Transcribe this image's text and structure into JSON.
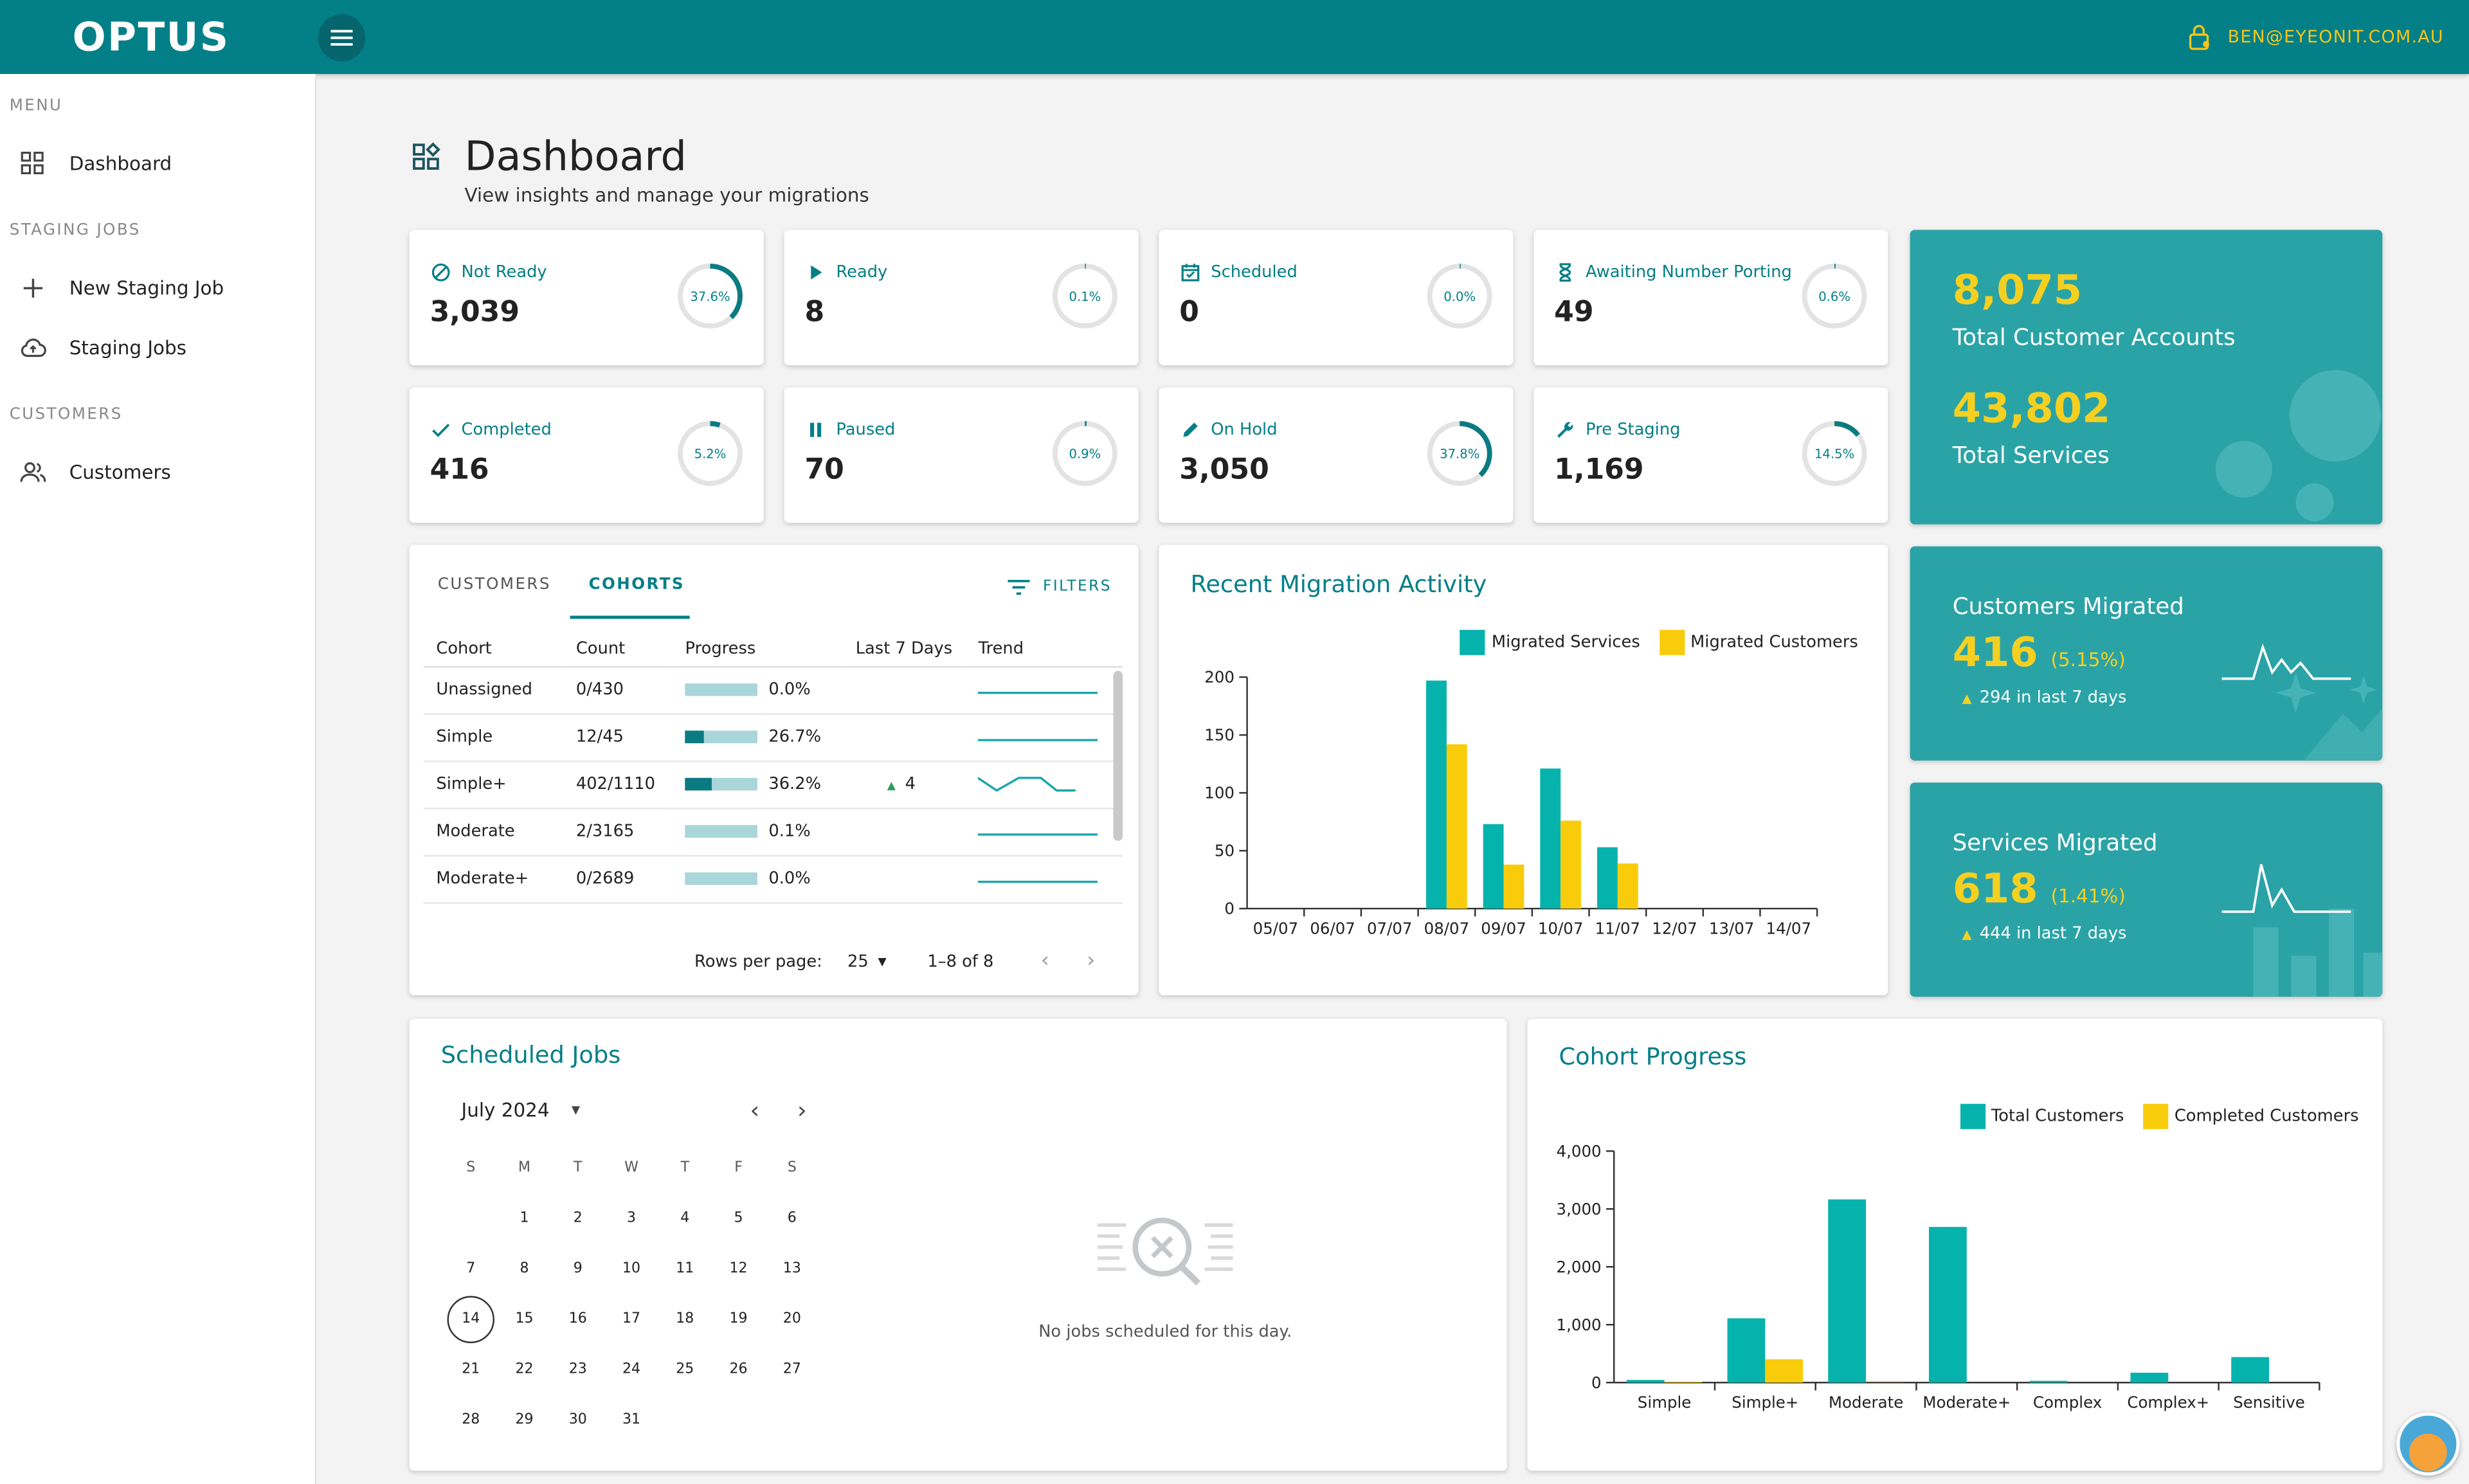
{
  "app": {
    "logo": "OPTUS",
    "user_email": "BEN@EYEONIT.COM.AU"
  },
  "sidebar": {
    "menu_label": "MENU",
    "dashboard": "Dashboard",
    "staging_label": "STAGING JOBS",
    "new_staging_job": "New Staging Job",
    "staging_jobs": "Staging Jobs",
    "customers_label": "CUSTOMERS",
    "customers": "Customers"
  },
  "page": {
    "title": "Dashboard",
    "subtitle": "View insights and manage your migrations"
  },
  "stats": [
    {
      "label": "Not Ready",
      "value": "3,039",
      "pct": "37.6%",
      "frac": 0.376,
      "icon": "block-icon"
    },
    {
      "label": "Ready",
      "value": "8",
      "pct": "0.1%",
      "frac": 0.001,
      "icon": "play-icon"
    },
    {
      "label": "Scheduled",
      "value": "0",
      "pct": "0.0%",
      "frac": 0,
      "icon": "calendar-check-icon"
    },
    {
      "label": "Awaiting Number Porting",
      "value": "49",
      "pct": "0.6%",
      "frac": 0.006,
      "icon": "hourglass-icon"
    },
    {
      "label": "Completed",
      "value": "416",
      "pct": "5.2%",
      "frac": 0.052,
      "icon": "check-icon"
    },
    {
      "label": "Paused",
      "value": "70",
      "pct": "0.9%",
      "frac": 0.009,
      "icon": "pause-icon"
    },
    {
      "label": "On Hold",
      "value": "3,050",
      "pct": "37.8%",
      "frac": 0.378,
      "icon": "pencil-icon"
    },
    {
      "label": "Pre Staging",
      "value": "1,169",
      "pct": "14.5%",
      "frac": 0.145,
      "icon": "wrench-icon"
    }
  ],
  "totals": {
    "accounts_value": "8,075",
    "accounts_label": "Total Customer Accounts",
    "services_value": "43,802",
    "services_label": "Total Services"
  },
  "customers_migrated": {
    "title": "Customers Migrated",
    "value": "416",
    "pct": "(5.15%)",
    "delta": "294 in last 7 days"
  },
  "services_migrated": {
    "title": "Services Migrated",
    "value": "618",
    "pct": "(1.41%)",
    "delta": "444 in last 7 days"
  },
  "cohort_table": {
    "tab_customers": "CUSTOMERS",
    "tab_cohorts": "COHORTS",
    "filters": "FILTERS",
    "headers": [
      "Cohort",
      "Count",
      "Progress",
      "Last 7 Days",
      "Trend"
    ],
    "rows": [
      {
        "cohort": "Unassigned",
        "count": "0/430",
        "progress": "0.0%",
        "frac": 0.0,
        "last7": ""
      },
      {
        "cohort": "Simple",
        "count": "12/45",
        "progress": "26.7%",
        "frac": 0.267,
        "last7": ""
      },
      {
        "cohort": "Simple+",
        "count": "402/1110",
        "progress": "36.2%",
        "frac": 0.362,
        "last7": "4"
      },
      {
        "cohort": "Moderate",
        "count": "2/3165",
        "progress": "0.1%",
        "frac": 0.001,
        "last7": ""
      },
      {
        "cohort": "Moderate+",
        "count": "0/2689",
        "progress": "0.0%",
        "frac": 0.0,
        "last7": ""
      }
    ],
    "rows_per_page_label": "Rows per page:",
    "rows_per_page": "25",
    "range": "1–8 of 8"
  },
  "scheduled": {
    "title": "Scheduled Jobs",
    "month": "July 2024",
    "weekdays": [
      "S",
      "M",
      "T",
      "W",
      "T",
      "F",
      "S"
    ],
    "selected_day": "14",
    "empty_text": "No jobs scheduled for this day."
  },
  "colors": {
    "teal": "#027f87",
    "bar_teal": "#05b2ac",
    "bar_yellow": "#f9cc0b"
  },
  "chart_data": [
    {
      "type": "bar",
      "title": "Recent Migration Activity",
      "categories": [
        "05/07",
        "06/07",
        "07/07",
        "08/07",
        "09/07",
        "10/07",
        "11/07",
        "12/07",
        "13/07",
        "14/07"
      ],
      "series": [
        {
          "name": "Migrated Services",
          "values": [
            0,
            0,
            0,
            197,
            73,
            121,
            53,
            0,
            0,
            0
          ]
        },
        {
          "name": "Migrated Customers",
          "values": [
            0,
            0,
            0,
            142,
            38,
            76,
            39,
            0,
            0,
            0
          ]
        }
      ],
      "yticks": [
        "0",
        "50",
        "100",
        "150",
        "200"
      ],
      "ylim": [
        0,
        200
      ]
    },
    {
      "type": "bar",
      "title": "Cohort Progress",
      "categories": [
        "Simple",
        "Simple+",
        "Moderate",
        "Moderate+",
        "Complex",
        "Complex+",
        "Sensitive"
      ],
      "series": [
        {
          "name": "Total Customers",
          "values": [
            45,
            1110,
            3165,
            2689,
            30,
            170,
            440
          ]
        },
        {
          "name": "Completed Customers",
          "values": [
            12,
            402,
            2,
            0,
            0,
            0,
            0
          ]
        }
      ],
      "yticks": [
        "0",
        "1,000",
        "2,000",
        "3,000",
        "4,000"
      ],
      "ylim": [
        0,
        4000
      ]
    }
  ]
}
